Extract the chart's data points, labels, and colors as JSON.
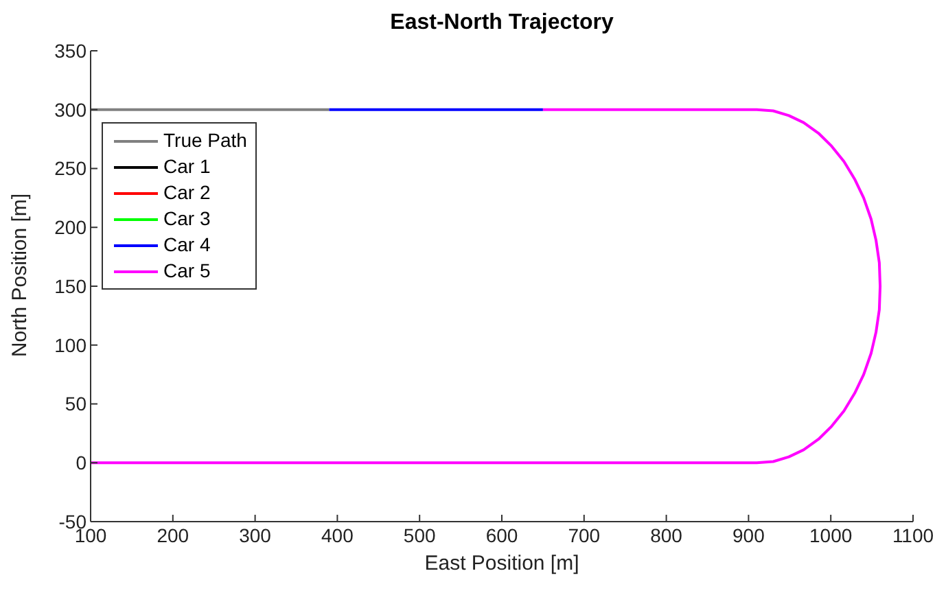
{
  "chart_data": {
    "type": "line",
    "title": "East-North Trajectory",
    "xlabel": "East Position [m]",
    "ylabel": "North Position [m]",
    "xlim": [
      100,
      1100
    ],
    "xticks": [
      100,
      200,
      300,
      400,
      500,
      600,
      700,
      800,
      900,
      1000,
      1100
    ],
    "ylim": [
      -50,
      350
    ],
    "yticks": [
      -50,
      0,
      50,
      100,
      150,
      200,
      250,
      300,
      350
    ],
    "grid": false,
    "legend": "top left",
    "line_style": "solid",
    "marker": "none",
    "series": [
      {
        "name": "True Path",
        "color": "#808080",
        "x": [
          100,
          390
        ],
        "values": [
          300,
          300
        ]
      },
      {
        "name": "Car 1",
        "color": "#000000"
      },
      {
        "name": "Car 2",
        "color": "#ff0000"
      },
      {
        "name": "Car 3",
        "color": "#00ff00"
      },
      {
        "name": "Car 4",
        "color": "#0000ff",
        "x": [
          390,
          650
        ],
        "values": [
          300,
          300
        ]
      },
      {
        "name": "Car 5",
        "color": "#ff00ff",
        "x": [
          100,
          910,
          930,
          949,
          967,
          985,
          1001,
          1016,
          1029,
          1040,
          1049,
          1055,
          1059,
          1060,
          1059,
          1055,
          1049,
          1040,
          1029,
          1016,
          1001,
          985,
          967,
          949,
          930,
          910,
          650
        ],
        "values": [
          0,
          0,
          1,
          5,
          11,
          20,
          31,
          44,
          59,
          75,
          93,
          111,
          130,
          150,
          170,
          189,
          207,
          225,
          241,
          256,
          269,
          280,
          289,
          295,
          299,
          300,
          300
        ]
      }
    ]
  }
}
